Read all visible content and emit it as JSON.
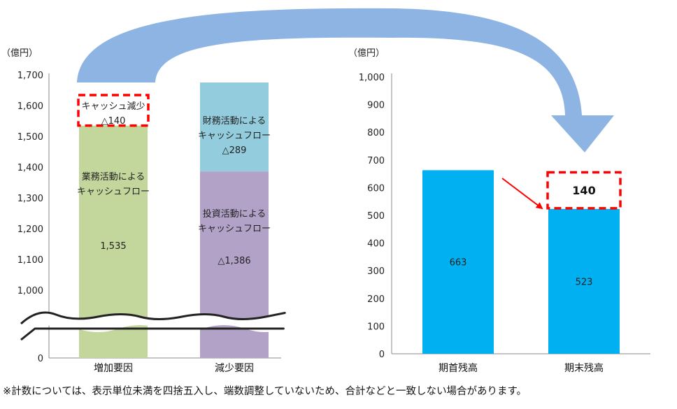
{
  "chart_data": [
    {
      "type": "bar",
      "stacked": true,
      "unit_label": "（億円）",
      "ylim": [
        0,
        1700
      ],
      "axis_break": true,
      "y_ticks": [
        "1,700",
        "1,600",
        "1,500",
        "1,400",
        "1,300",
        "1,200",
        "1,100",
        "1,000",
        "0"
      ],
      "categories": [
        "増加要因",
        "減少要因"
      ],
      "segments": [
        {
          "category": "増加要因",
          "from": 0,
          "to": 1535,
          "color": "#c3d69b",
          "label_lines": [
            "業務活動による",
            "キャッシュフロー"
          ],
          "value_label": "1,535"
        },
        {
          "category": "増加要因",
          "from": 1535,
          "to": 1675,
          "color": "#ffffff",
          "dashed_outline": true,
          "label_lines": [
            "キャッシュ減少",
            "△140"
          ]
        },
        {
          "category": "減少要因",
          "from": 0,
          "to": 1386,
          "color": "#b3a2c7",
          "label_lines": [
            "投資活動による",
            "キャッシュフロー"
          ],
          "value_label": "△1,386"
        },
        {
          "category": "減少要因",
          "from": 1386,
          "to": 1675,
          "color": "#93cddd",
          "label_lines": [
            "財務活動による",
            "キャッシュフロー",
            "△289"
          ]
        }
      ]
    },
    {
      "type": "bar",
      "unit_label": "（億円）",
      "ylim": [
        0,
        1000
      ],
      "y_ticks": [
        "1,000",
        "900",
        "800",
        "700",
        "600",
        "500",
        "400",
        "300",
        "200",
        "100",
        "0"
      ],
      "categories": [
        "期首残高",
        "期末残高"
      ],
      "values": [
        663,
        523
      ],
      "value_labels": [
        "663",
        "523"
      ],
      "color": "#00b0f0",
      "decrease_box": {
        "from": 523,
        "to": 663,
        "label": "140"
      }
    }
  ],
  "colors": {
    "arrow": "#8db4e2",
    "dashed_box": "#ff0000",
    "red_arrow": "#ff0000"
  },
  "footnote": "※計数については、表示単位未満を四捨五入し、端数調整していないため、合計などと一致しない場合があります。"
}
